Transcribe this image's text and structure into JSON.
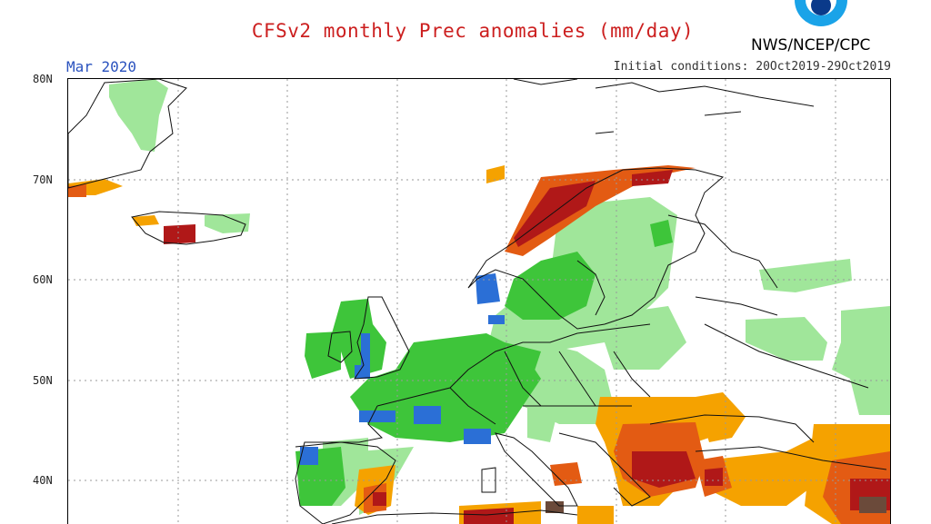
{
  "header": {
    "title": "CFSv2 monthly Prec anomalies (mm/day)",
    "agency": "NWS/NCEP/CPC",
    "month": "Mar 2020",
    "initial_conditions": "Initial conditions: 20Oct2019-29Oct2019"
  },
  "map": {
    "lat_labels": [
      "80N",
      "70N",
      "60N",
      "50N",
      "40N"
    ],
    "colors": {
      "light_green": "#a0e69a",
      "green": "#3ec53a",
      "blue": "#2b6fd6",
      "orange": "#f5a200",
      "red_orange": "#e35b13",
      "dark_red": "#b01818",
      "brown": "#6b4a3a",
      "coastline": "#111111",
      "gridline": "#999999"
    }
  }
}
